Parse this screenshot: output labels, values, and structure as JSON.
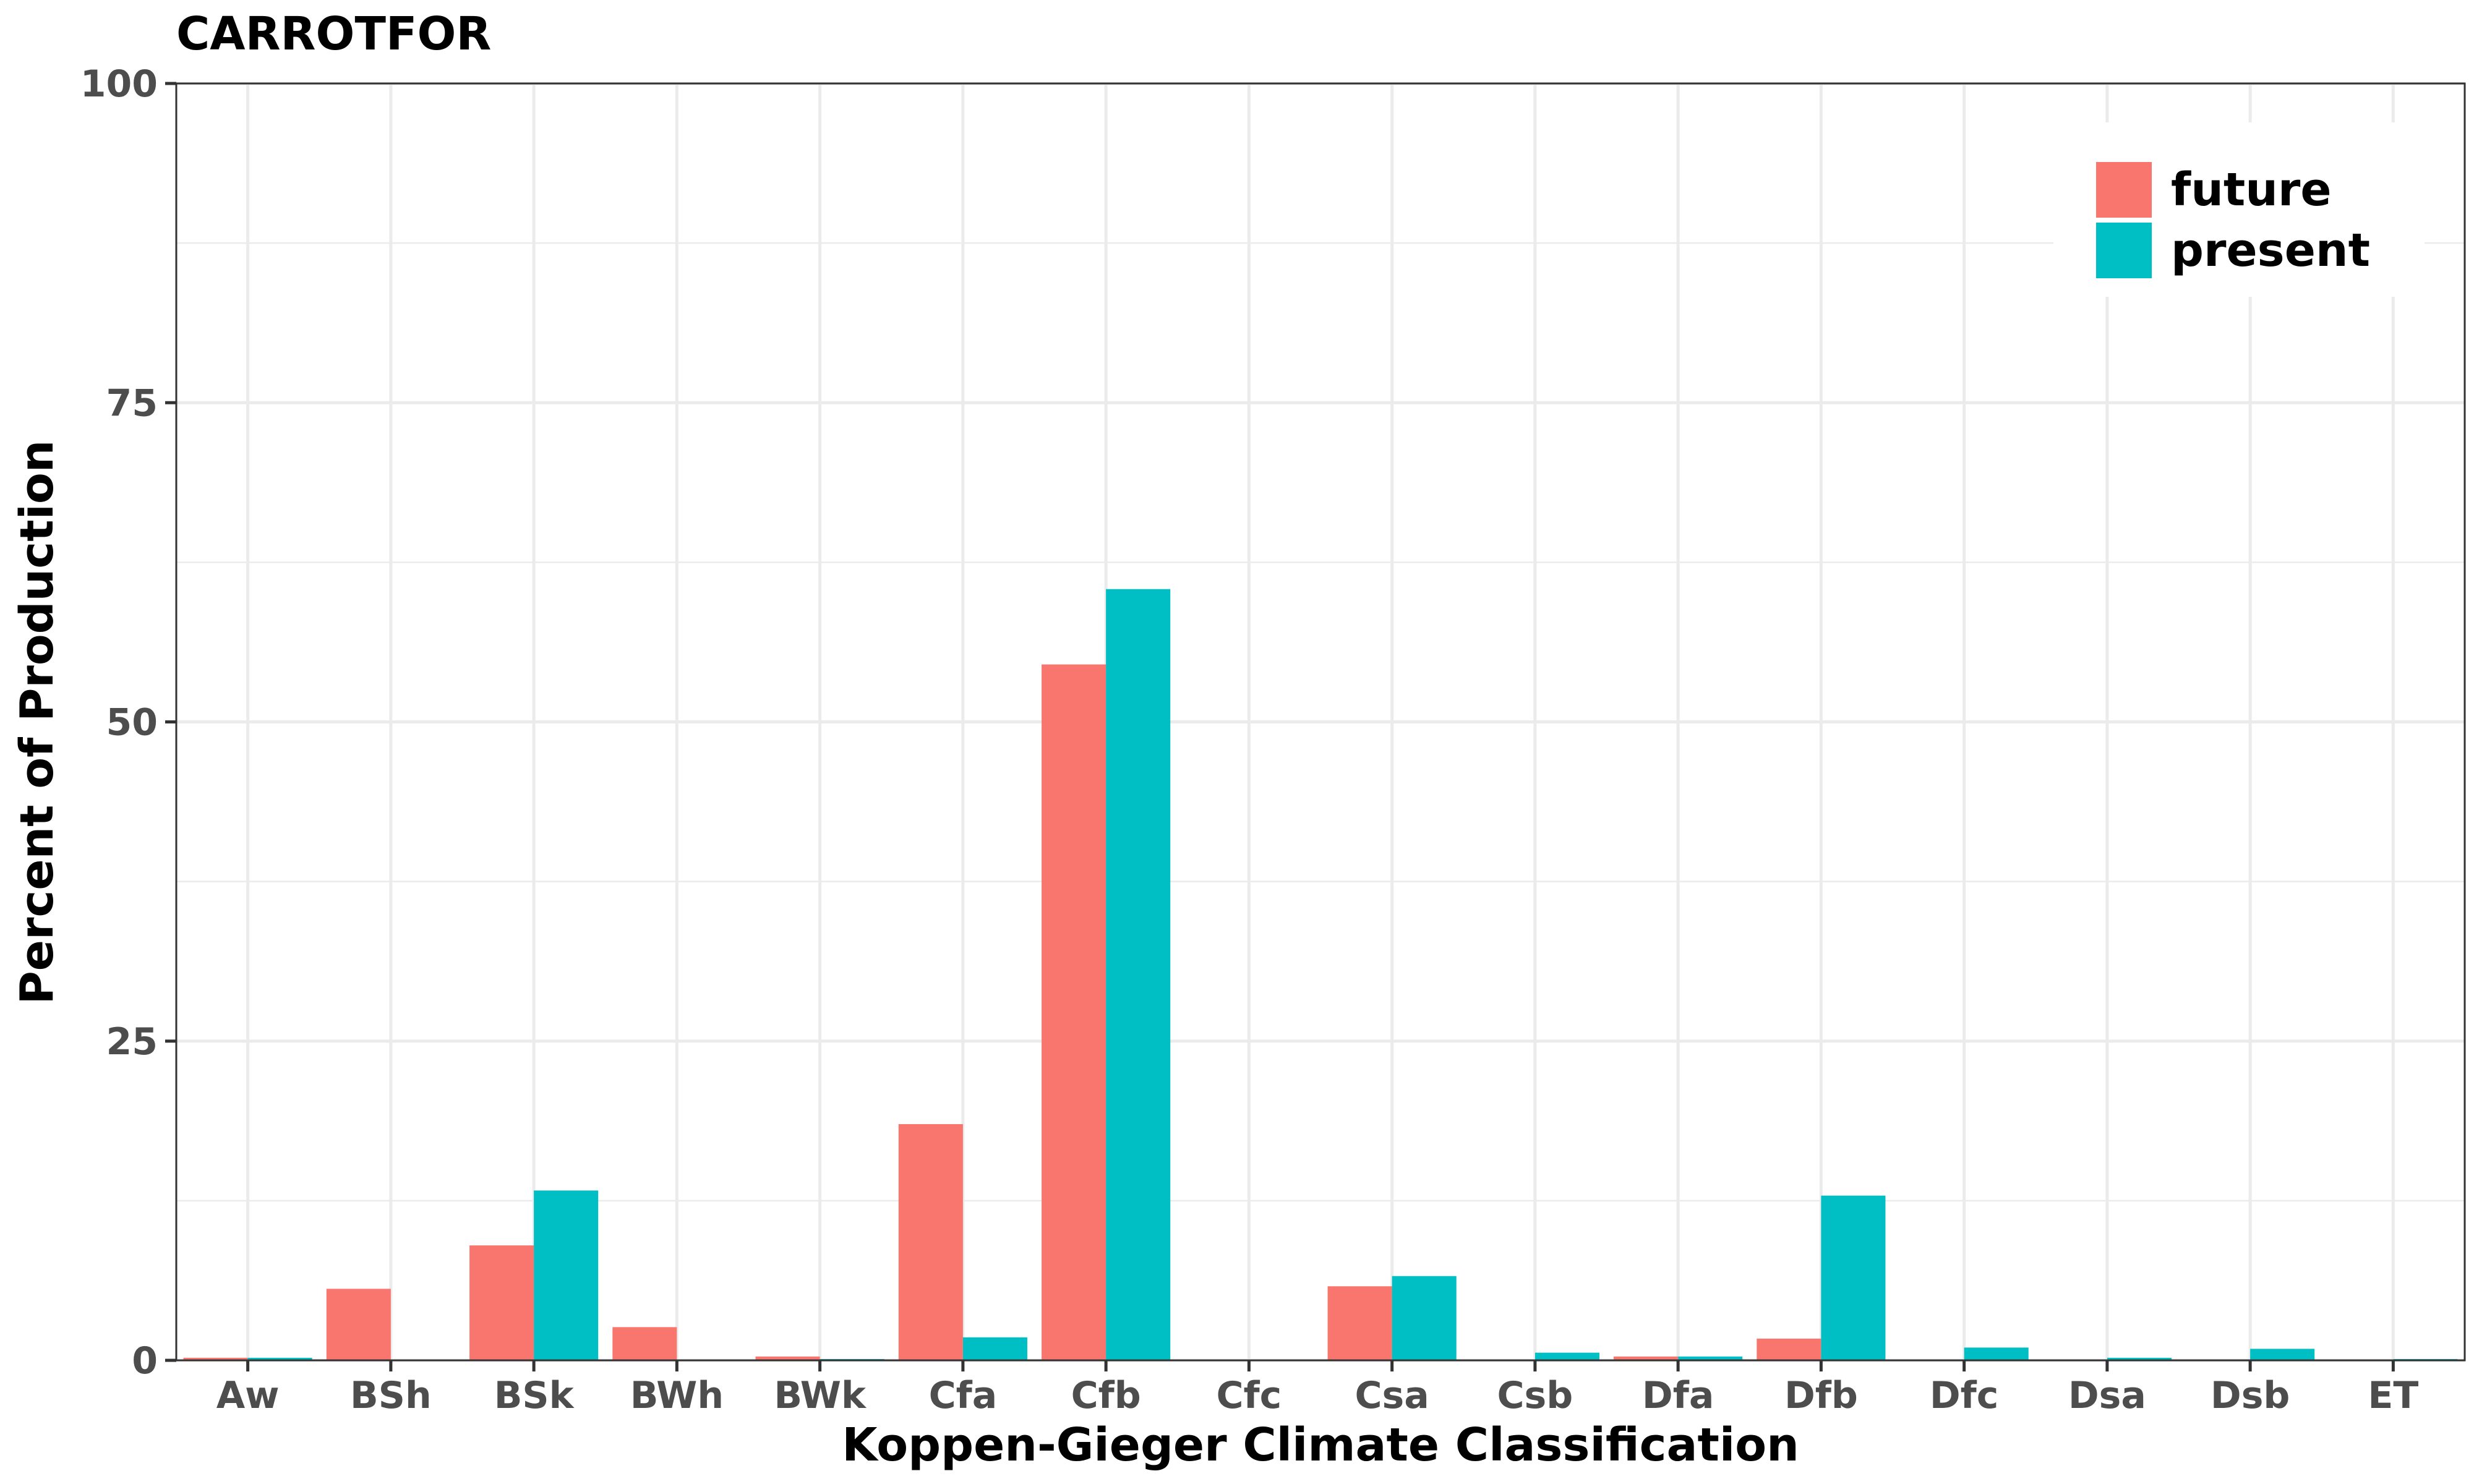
{
  "chart_data": {
    "type": "bar",
    "title": "CARROTFOR",
    "xlabel": "Koppen-Gieger Climate Classification",
    "ylabel": "Percent of Production",
    "ylim": [
      0,
      100
    ],
    "yticks": [
      "0",
      "25",
      "50",
      "75",
      "100"
    ],
    "grid": true,
    "legend_position": "top-right",
    "categories": [
      "Aw",
      "BSh",
      "BSk",
      "BWh",
      "BWk",
      "Cfa",
      "Cfb",
      "Cfc",
      "Csa",
      "Csb",
      "Dfa",
      "Dfb",
      "Dfc",
      "Dsa",
      "Dsb",
      "ET"
    ],
    "series": [
      {
        "name": "future",
        "color": "#F8766D",
        "values": [
          0.2,
          5.6,
          9.0,
          2.6,
          0.3,
          18.5,
          54.5,
          0.0,
          5.8,
          0.0,
          0.3,
          1.7,
          0.0,
          0.0,
          0.0,
          0.0
        ]
      },
      {
        "name": "present",
        "color": "#00BFC4",
        "values": [
          0.2,
          0.0,
          13.3,
          0.0,
          0.1,
          1.8,
          60.4,
          0.0,
          6.6,
          0.6,
          0.3,
          12.9,
          1.0,
          0.2,
          0.9,
          0.1
        ]
      }
    ]
  }
}
